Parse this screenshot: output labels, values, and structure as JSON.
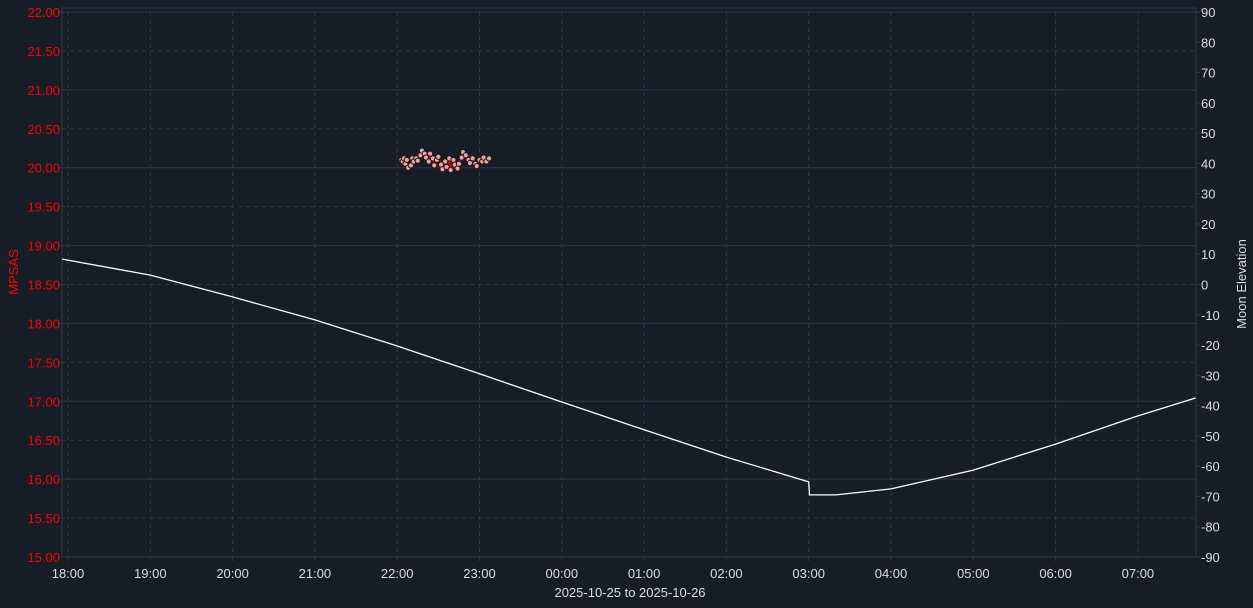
{
  "chart_data": {
    "type": "scatter+line",
    "xlabel": "2025-10-25 to 2025-10-26",
    "x_ticks": [
      "18:00",
      "19:00",
      "20:00",
      "21:00",
      "22:00",
      "23:00",
      "00:00",
      "01:00",
      "02:00",
      "03:00",
      "04:00",
      "05:00",
      "06:00",
      "07:00"
    ],
    "x_range_hours_from_18": [
      -0.07,
      13.7
    ],
    "grid": true,
    "colors": {
      "background": "#161d27",
      "grid": "#2a3a4c",
      "mpsas": "#ff0000",
      "points": "#f4a0a0",
      "moon": "#ffffff",
      "right_axis_text": "#dddddd"
    },
    "left_axis": {
      "label": "MPSAS",
      "ylim": [
        15,
        22
      ],
      "ticks": [
        "15.00",
        "15.50",
        "16.00",
        "16.50",
        "17.00",
        "17.50",
        "18.00",
        "18.50",
        "19.00",
        "19.50",
        "20.00",
        "20.50",
        "21.00",
        "21.50",
        "22.00"
      ]
    },
    "right_axis": {
      "label": "Moon Elevation",
      "ylim": [
        -90,
        90
      ],
      "ticks": [
        "-90",
        "-80",
        "-70",
        "-60",
        "-50",
        "-40",
        "-30",
        "-20",
        "-10",
        "0",
        "10",
        "20",
        "30",
        "40",
        "50",
        "60",
        "70",
        "80",
        "90"
      ]
    },
    "series": [
      {
        "name": "MPSAS",
        "axis": "left",
        "kind": "scatter",
        "x": [
          "22:03",
          "22:04",
          "22:05",
          "22:06",
          "22:07",
          "22:08",
          "22:10",
          "22:11",
          "22:12",
          "22:14",
          "22:15",
          "22:17",
          "22:18",
          "22:20",
          "22:21",
          "22:23",
          "22:24",
          "22:26",
          "22:27",
          "22:29",
          "22:30",
          "22:32",
          "22:33",
          "22:35",
          "22:36",
          "22:38",
          "22:39",
          "22:41",
          "22:42",
          "22:44",
          "22:45",
          "22:47",
          "22:48",
          "22:50",
          "22:52",
          "22:53",
          "22:55",
          "22:57",
          "22:58",
          "23:00",
          "23:02",
          "23:03",
          "23:05",
          "23:07"
        ],
        "y": [
          20.1,
          20.08,
          20.12,
          20.05,
          20.1,
          20.0,
          20.03,
          20.12,
          20.08,
          20.12,
          20.09,
          20.16,
          20.22,
          20.18,
          20.13,
          20.08,
          20.18,
          20.12,
          20.03,
          20.1,
          20.14,
          20.04,
          19.98,
          20.08,
          20.01,
          20.12,
          19.97,
          20.1,
          20.04,
          19.99,
          20.05,
          20.13,
          20.2,
          20.16,
          20.1,
          20.06,
          20.12,
          20.05,
          20.02,
          20.1,
          20.08,
          20.13,
          20.08,
          20.12
        ]
      },
      {
        "name": "Moon Elevation",
        "axis": "right",
        "kind": "line",
        "x": [
          -0.07,
          1,
          2,
          3,
          4,
          5,
          6,
          7,
          8,
          9,
          9.01,
          9.33,
          10,
          11,
          12,
          13,
          13.7
        ],
        "y": [
          8.4,
          3.1,
          -4.1,
          -11.7,
          -20.3,
          -29.5,
          -38.8,
          -48.0,
          -57.0,
          -65.2,
          -69.5,
          -69.5,
          -67.5,
          -61.3,
          -52.7,
          -43.4,
          -37.5
        ]
      }
    ]
  }
}
